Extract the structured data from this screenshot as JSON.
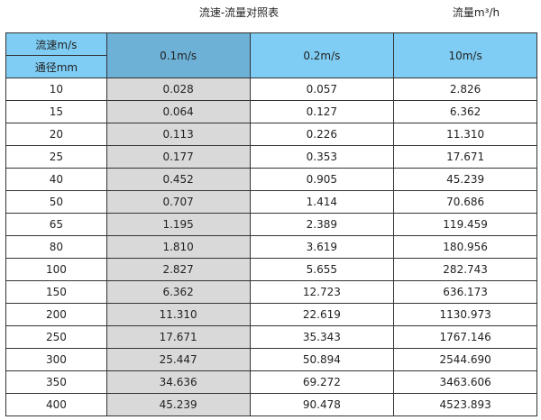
{
  "title": "流速-流量对照表",
  "unit_label": "流量m³/h",
  "table": {
    "corner_top": "流速m/s",
    "corner_bottom": "通径mm",
    "columns": [
      "0.1m/s",
      "0.2m/s",
      "10m/s"
    ],
    "rows": [
      [
        "10",
        "0.028",
        "0.057",
        "2.826"
      ],
      [
        "15",
        "0.064",
        "0.127",
        "6.362"
      ],
      [
        "20",
        "0.113",
        "0.226",
        "11.310"
      ],
      [
        "25",
        "0.177",
        "0.353",
        "17.671"
      ],
      [
        "40",
        "0.452",
        "0.905",
        "45.239"
      ],
      [
        "50",
        "0.707",
        "1.414",
        "70.686"
      ],
      [
        "65",
        "1.195",
        "2.389",
        "119.459"
      ],
      [
        "80",
        "1.810",
        "3.619",
        "180.956"
      ],
      [
        "100",
        "2.827",
        "5.655",
        "282.743"
      ],
      [
        "150",
        "6.362",
        "12.723",
        "636.173"
      ],
      [
        "200",
        "11.310",
        "22.619",
        "1130.973"
      ],
      [
        "250",
        "17.671",
        "35.343",
        "1767.146"
      ],
      [
        "300",
        "25.447",
        "50.894",
        "2544.690"
      ],
      [
        "350",
        "34.636",
        "69.272",
        "3463.606"
      ],
      [
        "400",
        "45.239",
        "90.478",
        "4523.893"
      ]
    ]
  },
  "colors": {
    "header": "#7fcdf4",
    "header_highlight": "#6db1d7",
    "column_highlight": "#d9d9d9"
  }
}
